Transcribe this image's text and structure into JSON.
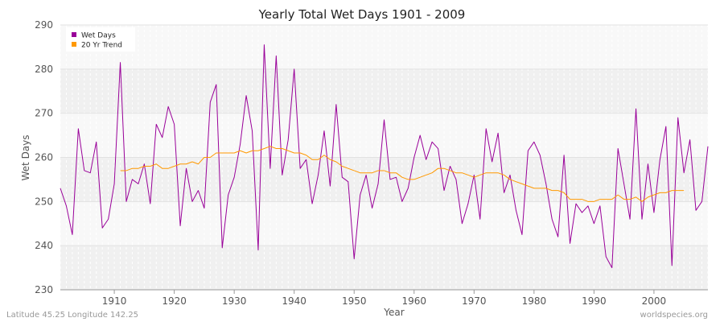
{
  "chart_data": {
    "type": "line",
    "title": "Yearly Total Wet Days 1901 - 2009",
    "xlabel": "Year",
    "ylabel": "Wet Days",
    "xlim": [
      1901,
      2009
    ],
    "ylim": [
      230,
      290
    ],
    "x_ticks": [
      1910,
      1920,
      1930,
      1940,
      1950,
      1960,
      1970,
      1980,
      1990,
      2000
    ],
    "y_ticks": [
      230,
      240,
      250,
      260,
      270,
      280,
      290
    ],
    "grid": true,
    "legend": {
      "position": "top-left",
      "entries": [
        "Wet Days",
        "20 Yr Trend"
      ]
    },
    "series": [
      {
        "name": "Wet Days",
        "color": "#990099",
        "x_start": 1901,
        "values": [
          253,
          249,
          242.5,
          266.5,
          257,
          256.5,
          263.5,
          244,
          246,
          254,
          281.5,
          250,
          255,
          254,
          258.5,
          249.5,
          267.5,
          264.5,
          271.5,
          267.5,
          244.5,
          257.5,
          250,
          252.5,
          248.5,
          272.5,
          276.5,
          239.5,
          251.5,
          255.5,
          263,
          274,
          266,
          239,
          285.5,
          257.5,
          283,
          256,
          264,
          280,
          257.5,
          259.5,
          249.5,
          256,
          266,
          253.5,
          272,
          255.5,
          254.5,
          237,
          251.5,
          256,
          248.5,
          254,
          268.5,
          255,
          255.5,
          250,
          253,
          260,
          265,
          259.5,
          263.5,
          262,
          252.5,
          258,
          255,
          245,
          249.5,
          256,
          246,
          266.5,
          259,
          265.5,
          252,
          256,
          248,
          242.5,
          261.5,
          263.5,
          260.5,
          254,
          246,
          242,
          260.5,
          240.5,
          249.5,
          247.5,
          249,
          245,
          249,
          237.5,
          235,
          262,
          254,
          246,
          271,
          246,
          258.5,
          247.5,
          259.5,
          267,
          235.5,
          269,
          256.5,
          264,
          248,
          250,
          262.5
        ]
      },
      {
        "name": "20 Yr Trend",
        "color": "#ff9900",
        "x_start": 1911,
        "values": [
          257,
          257,
          257.5,
          257.5,
          258,
          258,
          258.5,
          257.5,
          257.5,
          258,
          258.5,
          258.5,
          259,
          258.5,
          260,
          260,
          261,
          261,
          261,
          261,
          261.5,
          261,
          261.5,
          261.5,
          262,
          262.5,
          262,
          262,
          261.5,
          261,
          261,
          260.5,
          259.5,
          259.5,
          260.5,
          259.5,
          259,
          258,
          257.5,
          257,
          256.5,
          256.5,
          256.5,
          257,
          257,
          256.5,
          256.5,
          255.5,
          255,
          255,
          255.5,
          256,
          256.5,
          257.5,
          257.5,
          257,
          256.5,
          256.5,
          256,
          255.5,
          256,
          256.5,
          256.5,
          256.5,
          256,
          255,
          254.5,
          254,
          253.5,
          253,
          253,
          253,
          252.5,
          252.5,
          252,
          250.5,
          250.5,
          250.5,
          250,
          250,
          250.5,
          250.5,
          250.5,
          251.5,
          250.5,
          250.5,
          251,
          250,
          251,
          251.5,
          252,
          252,
          252.5,
          252.5,
          252.5
        ]
      }
    ]
  },
  "footer": {
    "location": "Latitude 45.25 Longitude 142.25",
    "source": "worldspecies.org"
  }
}
